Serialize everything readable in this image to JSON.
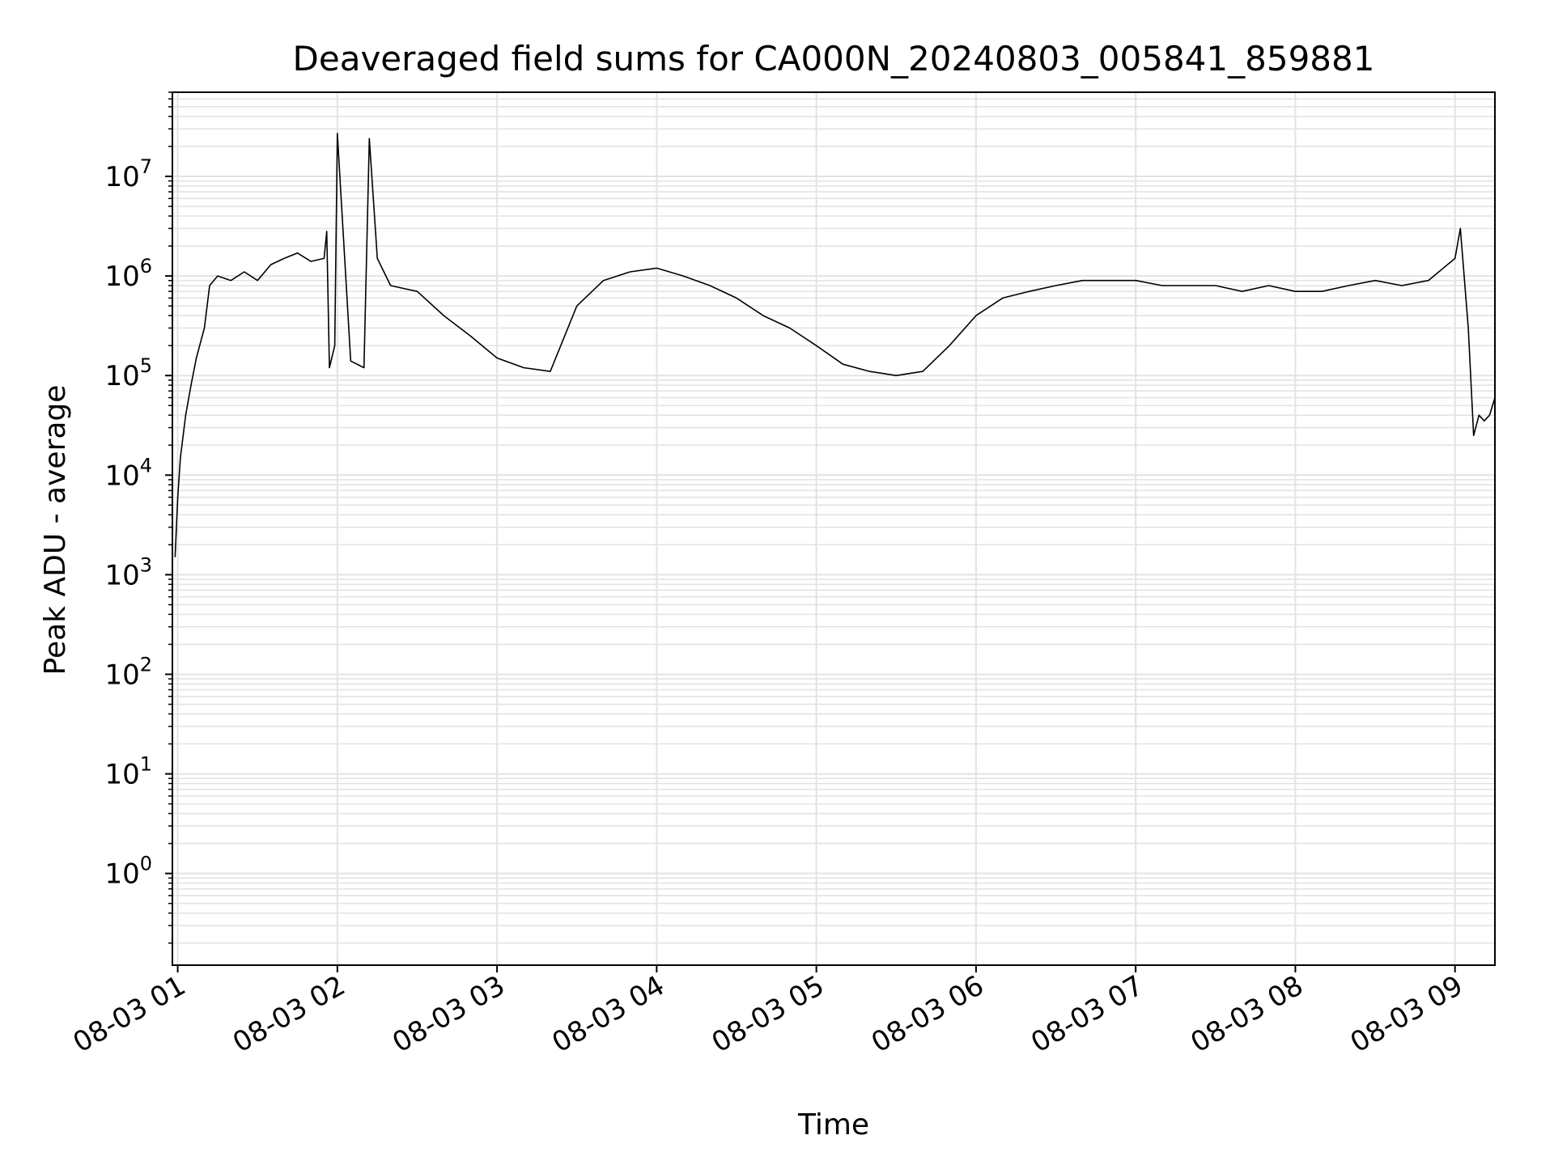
{
  "chart_data": {
    "type": "line",
    "title": "Deaveraged field sums for CA000N_20240803_005841_859881",
    "xlabel": "Time",
    "ylabel": "Peak ADU - average",
    "yscale": "log",
    "grid": true,
    "colors": {
      "line": "#000000",
      "grid": "#e3e3e3",
      "frame": "#000000"
    },
    "x_ticks": [
      "08-03 01",
      "08-03 02",
      "08-03 03",
      "08-03 04",
      "08-03 05",
      "08-03 06",
      "08-03 07",
      "08-03 08",
      "08-03 09"
    ],
    "xlim": [
      "2024-08-03 00:58",
      "2024-08-03 09:15"
    ],
    "y_ticks": [
      {
        "base": "10",
        "exp": "0",
        "value": 1
      },
      {
        "base": "10",
        "exp": "1",
        "value": 10
      },
      {
        "base": "10",
        "exp": "2",
        "value": 100
      },
      {
        "base": "10",
        "exp": "3",
        "value": 1000
      },
      {
        "base": "10",
        "exp": "4",
        "value": 10000
      },
      {
        "base": "10",
        "exp": "5",
        "value": 100000
      },
      {
        "base": "10",
        "exp": "6",
        "value": 1000000
      },
      {
        "base": "10",
        "exp": "7",
        "value": 10000000
      }
    ],
    "ylim": [
      0.12,
      70000000
    ],
    "series": [
      {
        "x": [
          "2024-08-03 00:59",
          "2024-08-03 01:00",
          "2024-08-03 01:01",
          "2024-08-03 01:03",
          "2024-08-03 01:05",
          "2024-08-03 01:07",
          "2024-08-03 01:10",
          "2024-08-03 01:12",
          "2024-08-03 01:15",
          "2024-08-03 01:20",
          "2024-08-03 01:25",
          "2024-08-03 01:30",
          "2024-08-03 01:35",
          "2024-08-03 01:40",
          "2024-08-03 01:45",
          "2024-08-03 01:50",
          "2024-08-03 01:55",
          "2024-08-03 01:56",
          "2024-08-03 01:57",
          "2024-08-03 01:59",
          "2024-08-03 02:00",
          "2024-08-03 02:05",
          "2024-08-03 02:10",
          "2024-08-03 02:12",
          "2024-08-03 02:15",
          "2024-08-03 02:20",
          "2024-08-03 02:30",
          "2024-08-03 02:40",
          "2024-08-03 02:50",
          "2024-08-03 03:00",
          "2024-08-03 03:10",
          "2024-08-03 03:20",
          "2024-08-03 03:30",
          "2024-08-03 03:40",
          "2024-08-03 03:50",
          "2024-08-03 04:00",
          "2024-08-03 04:10",
          "2024-08-03 04:20",
          "2024-08-03 04:30",
          "2024-08-03 04:40",
          "2024-08-03 04:50",
          "2024-08-03 05:00",
          "2024-08-03 05:10",
          "2024-08-03 05:20",
          "2024-08-03 05:30",
          "2024-08-03 05:40",
          "2024-08-03 05:50",
          "2024-08-03 06:00",
          "2024-08-03 06:10",
          "2024-08-03 06:20",
          "2024-08-03 06:30",
          "2024-08-03 06:40",
          "2024-08-03 06:50",
          "2024-08-03 07:00",
          "2024-08-03 07:10",
          "2024-08-03 07:20",
          "2024-08-03 07:30",
          "2024-08-03 07:40",
          "2024-08-03 07:50",
          "2024-08-03 08:00",
          "2024-08-03 08:10",
          "2024-08-03 08:20",
          "2024-08-03 08:30",
          "2024-08-03 08:40",
          "2024-08-03 08:50",
          "2024-08-03 09:00",
          "2024-08-03 09:02",
          "2024-08-03 09:05",
          "2024-08-03 09:07",
          "2024-08-03 09:09",
          "2024-08-03 09:11",
          "2024-08-03 09:13",
          "2024-08-03 09:15"
        ],
        "values": [
          1500,
          6000,
          15000,
          40000,
          80000,
          150000,
          300000,
          800000,
          1000000,
          900000,
          1100000,
          900000,
          1300000,
          1500000,
          1700000,
          1400000,
          1500000,
          2800000,
          120000,
          200000,
          27000000,
          140000,
          120000,
          24000000,
          1500000,
          800000,
          700000,
          400000,
          250000,
          150000,
          120000,
          110000,
          500000,
          900000,
          1100000,
          1200000,
          1000000,
          800000,
          600000,
          400000,
          300000,
          200000,
          130000,
          110000,
          100000,
          110000,
          200000,
          400000,
          600000,
          700000,
          800000,
          900000,
          900000,
          900000,
          800000,
          800000,
          800000,
          700000,
          800000,
          700000,
          700000,
          800000,
          900000,
          800000,
          900000,
          1500000,
          3000000,
          300000,
          25000,
          40000,
          35000,
          40000,
          60000
        ]
      }
    ]
  }
}
